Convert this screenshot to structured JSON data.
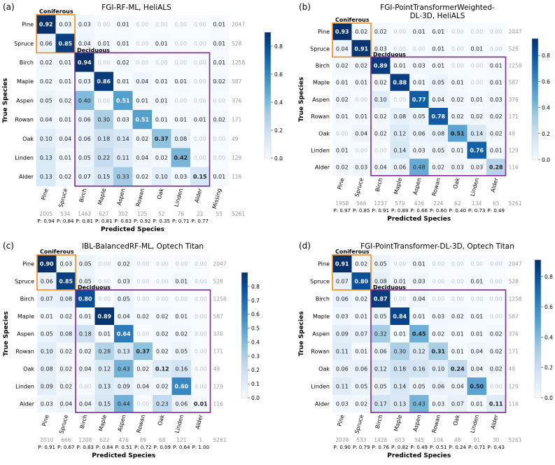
{
  "chart_data": [
    {
      "type": "heatmap",
      "panel_label": "(a)",
      "title": "FGI-RF-ML, HeliALS",
      "xlabel": "Predicted Species",
      "ylabel": "True Species",
      "rows": [
        "Pine",
        "Spruce",
        "Birch",
        "Maple",
        "Aspen",
        "Rowan",
        "Oak",
        "Linden",
        "Alder"
      ],
      "cols": [
        "Pine",
        "Spruce",
        "Birch",
        "Maple",
        "Aspen",
        "Rowan",
        "Oak",
        "Linden",
        "Alder",
        "Missing"
      ],
      "values": [
        [
          0.92,
          0.03,
          0.03,
          0.0,
          0.01,
          0.0,
          0.0,
          0.0,
          0.0,
          0.01
        ],
        [
          0.06,
          0.85,
          0.04,
          0.01,
          0.01,
          0.0,
          0.01,
          0.0,
          0.0,
          0.01
        ],
        [
          0.02,
          0.01,
          0.94,
          0.0,
          0.02,
          0.0,
          0.0,
          0.0,
          0.0,
          0.01
        ],
        [
          0.02,
          0.01,
          0.03,
          0.86,
          0.01,
          0.04,
          0.01,
          0.01,
          0.0,
          0.02
        ],
        [
          0.05,
          0.02,
          0.4,
          0.0,
          0.51,
          0.01,
          0.01,
          0.0,
          0.0,
          0.0
        ],
        [
          0.04,
          0.01,
          0.06,
          0.3,
          0.03,
          0.51,
          0.01,
          0.01,
          0.01,
          0.02
        ],
        [
          0.1,
          0.04,
          0.06,
          0.18,
          0.14,
          0.02,
          0.37,
          0.08,
          0.0,
          0.0
        ],
        [
          0.13,
          0.01,
          0.05,
          0.22,
          0.11,
          0.04,
          0.02,
          0.42,
          0.0,
          0.0
        ],
        [
          0.13,
          0.02,
          0.07,
          0.15,
          0.33,
          0.02,
          0.1,
          0.03,
          0.15,
          0.01
        ]
      ],
      "row_totals": [
        "2047",
        "528",
        "1258",
        "587",
        "376",
        "171",
        "49",
        "129",
        "116"
      ],
      "col_totals": [
        "2005",
        "534",
        "1463",
        "627",
        "302",
        "125",
        "52",
        "76",
        "22",
        "55"
      ],
      "grand_total": "5261",
      "precisions": [
        "P: 0.94",
        "P: 0.84",
        "P: 0.81",
        "P: 0.81",
        "P: 0.63",
        "P: 0.92",
        "P: 0.35",
        "P: 0.71",
        "P: 0.77"
      ],
      "colorbar": {
        "min": 0.0,
        "max": 0.9,
        "ticks": [
          0.0,
          0.2,
          0.4,
          0.6,
          0.8
        ],
        "labels": [
          "0.0",
          "0.2",
          "0.4",
          "0.6",
          "0.8"
        ]
      },
      "group_labels": [
        "Coniferous",
        "Deciduous"
      ]
    },
    {
      "type": "heatmap",
      "panel_label": "(b)",
      "title": "FGI-PointTransformerWeighted-\nDL-3D, HeliALS",
      "xlabel": "Predicted Species",
      "ylabel": "True Species",
      "rows": [
        "Pine",
        "Spruce",
        "Birch",
        "Maple",
        "Aspen",
        "Rowan",
        "Oak",
        "Linden",
        "Alder"
      ],
      "cols": [
        "Pine",
        "Spruce",
        "Birch",
        "Maple",
        "Aspen",
        "Rowan",
        "Oak",
        "Linden",
        "Alder"
      ],
      "values": [
        [
          0.93,
          0.02,
          0.02,
          0.0,
          0.01,
          0.01,
          0.0,
          0.0,
          0.0
        ],
        [
          0.04,
          0.91,
          0.03,
          0.0,
          0.0,
          0.01,
          0.0,
          0.01,
          0.0
        ],
        [
          0.02,
          0.02,
          0.89,
          0.01,
          0.03,
          0.01,
          0.0,
          0.0,
          0.01
        ],
        [
          0.01,
          0.01,
          0.02,
          0.88,
          0.01,
          0.05,
          0.01,
          0.0,
          0.01
        ],
        [
          0.02,
          0.0,
          0.1,
          0.0,
          0.77,
          0.04,
          0.02,
          0.01,
          0.03
        ],
        [
          0.01,
          0.01,
          0.02,
          0.08,
          0.05,
          0.78,
          0.02,
          0.02,
          0.02
        ],
        [
          0.0,
          0.04,
          0.02,
          0.12,
          0.06,
          0.08,
          0.51,
          0.14,
          0.02
        ],
        [
          0.01,
          0.0,
          0.0,
          0.14,
          0.03,
          0.05,
          0.01,
          0.76,
          0.01
        ],
        [
          0.02,
          0.03,
          0.04,
          0.06,
          0.48,
          0.02,
          0.03,
          0.03,
          0.28
        ]
      ],
      "row_totals": [
        "2047",
        "528",
        "1258",
        "587",
        "376",
        "171",
        "49",
        "129",
        "116"
      ],
      "col_totals": [
        "1958",
        "566",
        "1237",
        "579",
        "436",
        "224",
        "62",
        "134",
        "65"
      ],
      "grand_total": "5261",
      "precisions": [
        "P: 0.97",
        "P: 0.85",
        "P: 0.91",
        "P: 0.89",
        "P: 0.66",
        "P: 0.60",
        "P: 0.40",
        "P: 0.73",
        "P: 0.49"
      ],
      "colorbar": {
        "min": 0.0,
        "max": 0.93,
        "ticks": [
          0.0,
          0.2,
          0.4,
          0.6,
          0.8
        ],
        "labels": [
          "0.0",
          "0.2",
          "0.4",
          "0.6",
          "0.8"
        ]
      },
      "group_labels": [
        "Coniferous",
        "Deciduous"
      ]
    },
    {
      "type": "heatmap",
      "panel_label": "(c)",
      "title": "IBL-BalancedRF-ML, Optech Titan",
      "xlabel": "Predicted Species",
      "ylabel": "True Species",
      "rows": [
        "Pine",
        "Spruce",
        "Birch",
        "Maple",
        "Aspen",
        "Rowan",
        "Oak",
        "Linden",
        "Alder"
      ],
      "cols": [
        "Pine",
        "Spruce",
        "Birch",
        "Maple",
        "Aspen",
        "Rowan",
        "Oak",
        "Linden",
        "Alder"
      ],
      "values": [
        [
          0.9,
          0.03,
          0.05,
          0.0,
          0.02,
          0.0,
          0.0,
          0.0,
          0.0
        ],
        [
          0.06,
          0.85,
          0.05,
          0.0,
          0.03,
          0.0,
          0.0,
          0.01,
          0.0
        ],
        [
          0.07,
          0.08,
          0.8,
          0.0,
          0.05,
          0.0,
          0.0,
          0.0,
          0.0
        ],
        [
          0.01,
          0.02,
          0.01,
          0.89,
          0.04,
          0.02,
          0.02,
          0.01,
          0.0
        ],
        [
          0.05,
          0.08,
          0.18,
          0.01,
          0.64,
          0.0,
          0.02,
          0.02,
          0.0
        ],
        [
          0.1,
          0.02,
          0.02,
          0.28,
          0.13,
          0.37,
          0.02,
          0.05,
          0.0
        ],
        [
          0.08,
          0.02,
          0.04,
          0.12,
          0.43,
          0.02,
          0.12,
          0.16,
          0.0
        ],
        [
          0.09,
          0.02,
          0.0,
          0.13,
          0.09,
          0.04,
          0.02,
          0.6,
          0.0
        ],
        [
          0.03,
          0.04,
          0.04,
          0.15,
          0.44,
          0.0,
          0.23,
          0.06,
          0.01
        ]
      ],
      "row_totals": [
        "2047",
        "528",
        "1258",
        "587",
        "376",
        "171",
        "49",
        "129",
        "116"
      ],
      "col_totals": [
        "2010",
        "666",
        "1208",
        "622",
        "476",
        "89",
        "68",
        "121",
        "1"
      ],
      "grand_total": "5261",
      "precisions": [
        "P: 0.91",
        "P: 0.67",
        "P: 0.83",
        "P: 0.84",
        "P: 0.51",
        "P: 0.72",
        "P: 0.09",
        "P: 0.64",
        "P: 1.00"
      ],
      "colorbar": {
        "min": 0.0,
        "max": 0.9,
        "ticks": [
          0.0,
          0.1,
          0.2,
          0.3,
          0.4,
          0.5,
          0.6,
          0.7,
          0.8
        ],
        "labels": [
          "0.0",
          "0.1",
          "0.2",
          "0.3",
          "0.4",
          "0.5",
          "0.6",
          "0.7",
          "0.8"
        ]
      },
      "group_labels": [
        "Coniferous",
        "Deciduous"
      ]
    },
    {
      "type": "heatmap",
      "panel_label": "(d)",
      "title": "FGI-PointTransformer-DL-3D, Optech Titan",
      "xlabel": "Predicted Species",
      "ylabel": "True Species",
      "rows": [
        "Pine",
        "Spruce",
        "Birch",
        "Maple",
        "Aspen",
        "Rowan",
        "Oak",
        "Linden",
        "Alder"
      ],
      "cols": [
        "Pine",
        "Spruce",
        "Birch",
        "Maple",
        "Aspen",
        "Rowan",
        "Oak",
        "Linden",
        "Alder"
      ],
      "values": [
        [
          0.91,
          0.02,
          0.05,
          0.0,
          0.01,
          0.0,
          0.0,
          0.0,
          0.0
        ],
        [
          0.07,
          0.8,
          0.08,
          0.01,
          0.03,
          0.0,
          0.0,
          0.01,
          0.0
        ],
        [
          0.06,
          0.02,
          0.87,
          0.0,
          0.04,
          0.0,
          0.0,
          0.0,
          0.0
        ],
        [
          0.03,
          0.01,
          0.05,
          0.84,
          0.01,
          0.03,
          0.02,
          0.01,
          0.0
        ],
        [
          0.09,
          0.07,
          0.32,
          0.01,
          0.45,
          0.02,
          0.01,
          0.01,
          0.02
        ],
        [
          0.11,
          0.01,
          0.06,
          0.3,
          0.12,
          0.31,
          0.01,
          0.04,
          0.02
        ],
        [
          0.06,
          0.06,
          0.12,
          0.18,
          0.16,
          0.1,
          0.24,
          0.04,
          0.02
        ],
        [
          0.11,
          0.05,
          0.05,
          0.14,
          0.05,
          0.06,
          0.04,
          0.5,
          0.0
        ],
        [
          0.03,
          0.02,
          0.17,
          0.13,
          0.43,
          0.03,
          0.07,
          0.01,
          0.11
        ]
      ],
      "row_totals": [
        "2047",
        "528",
        "1258",
        "587",
        "376",
        "171",
        "49",
        "129",
        "116"
      ],
      "col_totals": [
        "2078",
        "533",
        "1428",
        "603",
        "345",
        "104",
        "49",
        "91",
        "30"
      ],
      "grand_total": "5261",
      "precisions": [
        "P: 0.90",
        "P: 0.79",
        "P: 0.76",
        "P: 0.82",
        "P: 0.49",
        "P: 0.51",
        "P: 0.24",
        "P: 0.71",
        "P: 0.43"
      ],
      "colorbar": {
        "min": 0.0,
        "max": 0.91,
        "ticks": [
          0.0,
          0.2,
          0.4,
          0.6,
          0.8
        ],
        "labels": [
          "0.0",
          "0.2",
          "0.4",
          "0.6",
          "0.8"
        ]
      },
      "group_labels": [
        "Coniferous",
        "Deciduous"
      ]
    }
  ]
}
